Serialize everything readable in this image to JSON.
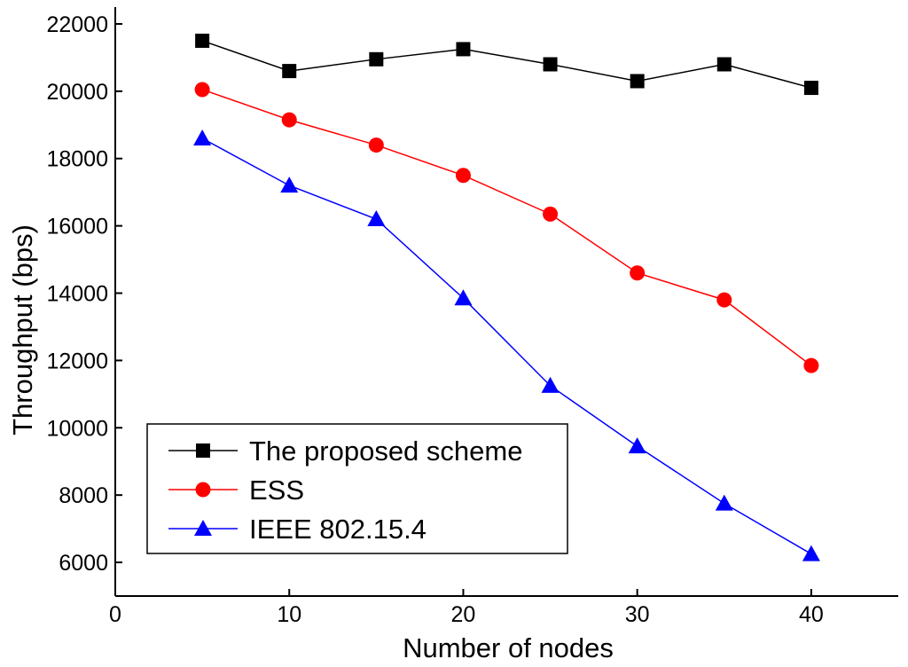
{
  "chart_data": {
    "type": "line",
    "title": "",
    "xlabel": "Number of nodes",
    "ylabel": "Throughput (bps)",
    "xlim": [
      0,
      45
    ],
    "ylim": [
      5000,
      22500
    ],
    "xticks": [
      0,
      10,
      20,
      30,
      40
    ],
    "yticks": [
      6000,
      8000,
      10000,
      12000,
      14000,
      16000,
      18000,
      20000,
      22000
    ],
    "x": [
      5,
      10,
      15,
      20,
      25,
      30,
      35,
      40
    ],
    "grid": false,
    "legend_position": "lower-left",
    "series": [
      {
        "name": "The proposed scheme",
        "color": "#000000",
        "marker": "square",
        "values": [
          21500,
          20600,
          20950,
          21250,
          20800,
          20300,
          20800,
          20100
        ]
      },
      {
        "name": "ESS",
        "color": "#ff0000",
        "marker": "circle",
        "values": [
          20050,
          19150,
          18400,
          17500,
          16350,
          14600,
          13800,
          11850
        ]
      },
      {
        "name": "IEEE 802.15.4",
        "color": "#0000ff",
        "marker": "triangle",
        "values": [
          18600,
          17200,
          16200,
          13850,
          11250,
          9450,
          7750,
          6250
        ]
      }
    ]
  }
}
